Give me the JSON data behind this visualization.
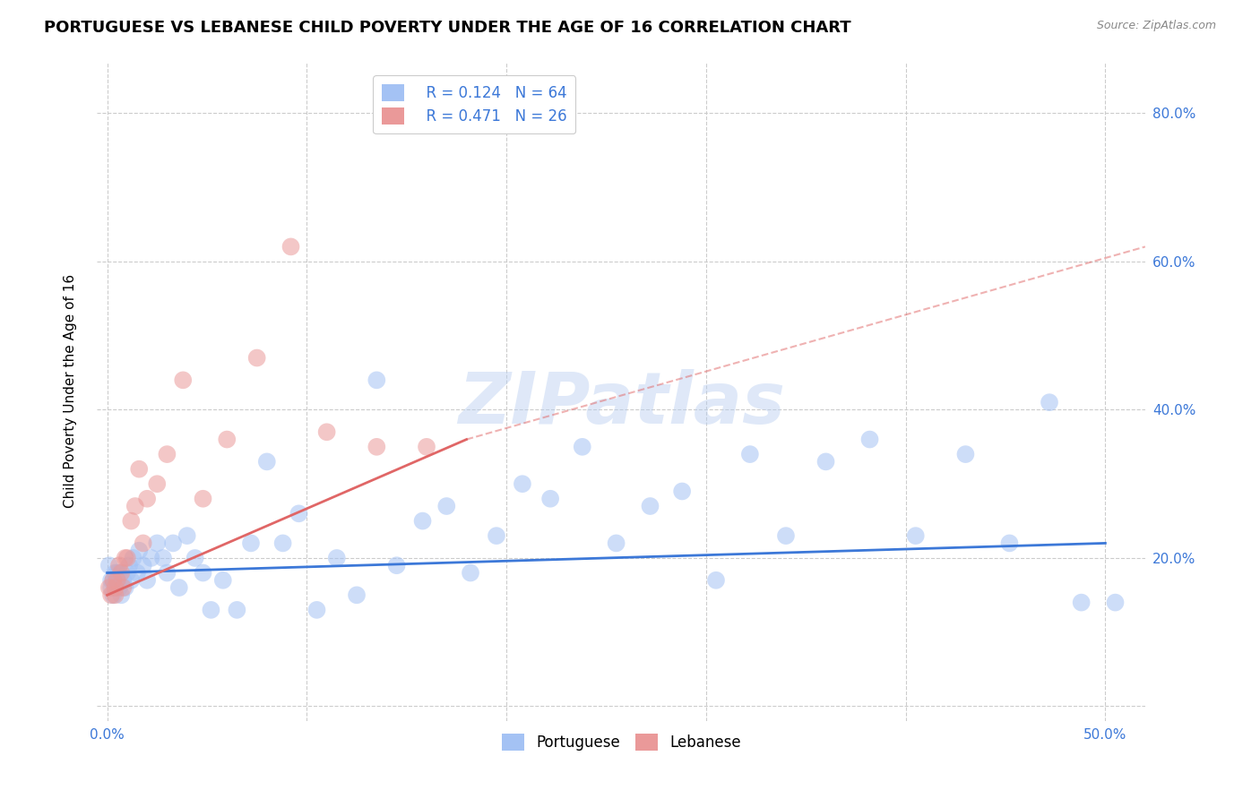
{
  "title": "PORTUGUESE VS LEBANESE CHILD POVERTY UNDER THE AGE OF 16 CORRELATION CHART",
  "source": "Source: ZipAtlas.com",
  "ylabel": "Child Poverty Under the Age of 16",
  "watermark": "ZIPatlas",
  "xlim": [
    -0.005,
    0.52
  ],
  "ylim": [
    -0.02,
    0.87
  ],
  "xticks": [
    0.0,
    0.5
  ],
  "yticks": [
    0.0,
    0.2,
    0.4,
    0.6,
    0.8
  ],
  "ytick_labels": [
    "",
    "20.0%",
    "40.0%",
    "60.0%",
    "80.0%"
  ],
  "xtick_labels": [
    "0.0%",
    "50.0%"
  ],
  "grid_xticks": [
    0.0,
    0.1,
    0.2,
    0.3,
    0.4,
    0.5
  ],
  "portuguese_R": 0.124,
  "portuguese_N": 64,
  "lebanese_R": 0.471,
  "lebanese_N": 26,
  "portuguese_color": "#a4c2f4",
  "lebanese_color": "#ea9999",
  "portuguese_line_color": "#3c78d8",
  "lebanese_line_color": "#e06666",
  "portuguese_x": [
    0.001,
    0.002,
    0.002,
    0.003,
    0.003,
    0.004,
    0.004,
    0.005,
    0.005,
    0.006,
    0.006,
    0.007,
    0.008,
    0.009,
    0.01,
    0.011,
    0.012,
    0.013,
    0.015,
    0.016,
    0.018,
    0.02,
    0.022,
    0.025,
    0.028,
    0.03,
    0.033,
    0.036,
    0.04,
    0.044,
    0.048,
    0.052,
    0.058,
    0.065,
    0.072,
    0.08,
    0.088,
    0.096,
    0.105,
    0.115,
    0.125,
    0.135,
    0.145,
    0.158,
    0.17,
    0.182,
    0.195,
    0.208,
    0.222,
    0.238,
    0.255,
    0.272,
    0.288,
    0.305,
    0.322,
    0.34,
    0.36,
    0.382,
    0.405,
    0.43,
    0.452,
    0.472,
    0.488,
    0.505
  ],
  "portuguese_y": [
    0.19,
    0.17,
    0.16,
    0.17,
    0.15,
    0.18,
    0.16,
    0.17,
    0.18,
    0.16,
    0.18,
    0.15,
    0.17,
    0.16,
    0.18,
    0.19,
    0.17,
    0.2,
    0.18,
    0.21,
    0.19,
    0.17,
    0.2,
    0.22,
    0.2,
    0.18,
    0.22,
    0.16,
    0.23,
    0.2,
    0.18,
    0.13,
    0.17,
    0.13,
    0.22,
    0.33,
    0.22,
    0.26,
    0.13,
    0.2,
    0.15,
    0.44,
    0.19,
    0.25,
    0.27,
    0.18,
    0.23,
    0.3,
    0.28,
    0.35,
    0.22,
    0.27,
    0.29,
    0.17,
    0.34,
    0.23,
    0.33,
    0.36,
    0.23,
    0.34,
    0.22,
    0.41,
    0.14,
    0.14
  ],
  "lebanese_x": [
    0.001,
    0.002,
    0.003,
    0.004,
    0.004,
    0.005,
    0.006,
    0.007,
    0.008,
    0.009,
    0.01,
    0.012,
    0.014,
    0.016,
    0.018,
    0.02,
    0.025,
    0.03,
    0.038,
    0.048,
    0.06,
    0.075,
    0.092,
    0.11,
    0.135,
    0.16
  ],
  "lebanese_y": [
    0.16,
    0.15,
    0.17,
    0.15,
    0.16,
    0.17,
    0.19,
    0.18,
    0.16,
    0.2,
    0.2,
    0.25,
    0.27,
    0.32,
    0.22,
    0.28,
    0.3,
    0.34,
    0.44,
    0.28,
    0.36,
    0.47,
    0.62,
    0.37,
    0.35,
    0.35
  ],
  "portuguese_trend_x": [
    0.0,
    0.5
  ],
  "portuguese_trend_y": [
    0.18,
    0.22
  ],
  "lebanese_trend_x": [
    0.0,
    0.18
  ],
  "lebanese_trend_y": [
    0.15,
    0.36
  ],
  "marker_size": 200,
  "marker_alpha": 0.55,
  "grid_color": "#cccccc",
  "background_color": "#ffffff",
  "title_fontsize": 13,
  "label_fontsize": 11,
  "tick_fontsize": 11,
  "legend_fontsize": 12
}
